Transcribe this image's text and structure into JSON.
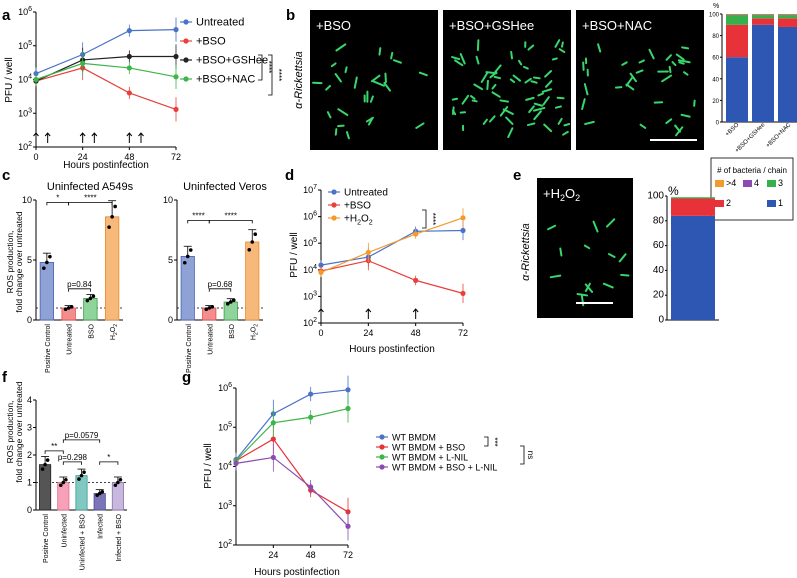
{
  "panel_labels": {
    "a": "a",
    "b": "b",
    "c": "c",
    "d": "d",
    "e": "e",
    "f": "f",
    "g": "g"
  },
  "panel_a": {
    "ylabel": "PFU / well",
    "xlabel": "Hours postinfection",
    "sig1": "****",
    "sig2": "****"
  },
  "panel_b": {
    "img_labels": [
      "+BSO",
      "+BSO+GSHee",
      "+BSO+NAC"
    ],
    "side_label": "α-Rickettsia",
    "pct_label": "%",
    "legend_title": "# of bacteria / chain",
    "legend_items": [
      ">4",
      "4",
      "3",
      "2",
      "1"
    ]
  },
  "panel_c": {
    "title_left": "Uninfected A549s",
    "title_right": "Uninfected Veros",
    "ylabel1": "ROS production,",
    "ylabel2": "fold change over untreated",
    "annot_left": [
      "*",
      "****",
      "p=0.84"
    ],
    "annot_right": [
      "****",
      "****",
      "p=0.68"
    ]
  },
  "panel_d": {
    "ylabel": "PFU / well",
    "xlabel": "Hours postinfection",
    "sig": "****"
  },
  "panel_e": {
    "img_label": "+H2O2",
    "side_label": "α-Rickettsia",
    "pct_label": "%"
  },
  "panel_f": {
    "ylabel1": "ROS production,",
    "ylabel2": "fold change over untreated",
    "annot": [
      "**",
      "p=0.298",
      "p=0.0579",
      "*"
    ]
  },
  "panel_g": {
    "ylabel": "PFU / well",
    "xlabel": "Hours postinfection",
    "sig1": "***",
    "sig2": "ns"
  },
  "chart_data": [
    {
      "id": "a",
      "type": "line",
      "xlabel": "Hours postinfection",
      "ylabel": "PFU / well",
      "yscale": "log",
      "ylim": [
        100,
        1000000
      ],
      "x_ticks": [
        0,
        24,
        48,
        72
      ],
      "y_ticks": [
        "10^2",
        "10^3",
        "10^4",
        "10^5",
        "10^6"
      ],
      "series": [
        {
          "name": "Untreated",
          "color": "#4a72c9",
          "x": [
            0,
            24,
            48,
            72
          ],
          "values": [
            15000,
            55000,
            280000,
            300000
          ]
        },
        {
          "name": "+BSO",
          "color": "#e8413c",
          "x": [
            0,
            24,
            48,
            72
          ],
          "values": [
            9000,
            22000,
            4000,
            1300
          ]
        },
        {
          "name": "+BSO+GSHee",
          "color": "#222222",
          "x": [
            0,
            24,
            48,
            72
          ],
          "values": [
            9000,
            38000,
            48000,
            48000
          ]
        },
        {
          "name": "+BSO+NAC",
          "color": "#3cb54a",
          "x": [
            0,
            24,
            48,
            72
          ],
          "values": [
            10000,
            30000,
            22000,
            12000
          ]
        }
      ],
      "arrows_at": [
        0,
        6,
        24,
        30,
        48,
        54
      ]
    },
    {
      "id": "b",
      "type": "bar",
      "stacked": true,
      "categories": [
        "+BSO",
        "+BSO+GSHee",
        "+BSO+NAC"
      ],
      "ylim": [
        0,
        100
      ],
      "y_ticks": [
        0,
        20,
        40,
        60,
        80,
        100
      ],
      "series": [
        {
          "name": "1",
          "color": "#2d57b3",
          "values": [
            60,
            90,
            88
          ]
        },
        {
          "name": "2",
          "color": "#e8323a",
          "values": [
            30,
            6,
            8
          ]
        },
        {
          "name": "3",
          "color": "#35b04a",
          "values": [
            9,
            3,
            3
          ]
        },
        {
          "name": "4",
          "color": "#8a4cb0",
          "values": [
            0.5,
            0.5,
            0.5
          ]
        },
        {
          "name": ">4",
          "color": "#f39a2d",
          "values": [
            0.5,
            0.5,
            0.5
          ]
        }
      ]
    },
    {
      "id": "c-left",
      "type": "bar",
      "title": "Uninfected A549s",
      "categories": [
        "Positive Control",
        "Untreated",
        "BSO",
        "H2O2"
      ],
      "values": [
        4.8,
        1.0,
        1.8,
        8.6
      ],
      "ylim": [
        0,
        10
      ],
      "y_ticks": [
        0,
        5,
        10
      ]
    },
    {
      "id": "c-right",
      "type": "bar",
      "title": "Uninfected Veros",
      "categories": [
        "Positive Control",
        "Untreated",
        "BSO",
        "H2O2"
      ],
      "values": [
        5.3,
        1.0,
        1.5,
        6.5
      ],
      "ylim": [
        0,
        10
      ],
      "y_ticks": [
        0,
        5,
        10
      ]
    },
    {
      "id": "d",
      "type": "line",
      "xlabel": "Hours postinfection",
      "ylabel": "PFU / well",
      "yscale": "log",
      "ylim": [
        100,
        10000000
      ],
      "x_ticks": [
        0,
        24,
        48,
        72
      ],
      "y_ticks": [
        "10^2",
        "10^3",
        "10^4",
        "10^5",
        "10^6",
        "10^7"
      ],
      "series": [
        {
          "name": "Untreated",
          "color": "#4a72c9",
          "x": [
            0,
            24,
            48,
            72
          ],
          "values": [
            15000,
            30000,
            280000,
            300000
          ]
        },
        {
          "name": "+BSO",
          "color": "#e8413c",
          "x": [
            0,
            24,
            48,
            72
          ],
          "values": [
            9000,
            22000,
            4000,
            1300
          ]
        },
        {
          "name": "+H2O2",
          "color": "#f39a2d",
          "x": [
            0,
            24,
            48,
            72
          ],
          "values": [
            8000,
            45000,
            220000,
            900000
          ]
        }
      ],
      "arrows_at": [
        0,
        24,
        48
      ]
    },
    {
      "id": "e",
      "type": "bar",
      "stacked": true,
      "categories": [
        "+H2O2"
      ],
      "ylim": [
        0,
        100
      ],
      "y_ticks": [
        0,
        20,
        40,
        60,
        80,
        100
      ],
      "series": [
        {
          "name": "1",
          "color": "#2d57b3",
          "values": [
            84
          ]
        },
        {
          "name": "2",
          "color": "#e8323a",
          "values": [
            14
          ]
        },
        {
          "name": "3",
          "color": "#35b04a",
          "values": [
            1
          ]
        }
      ]
    },
    {
      "id": "f",
      "type": "bar",
      "categories": [
        "Positive Control",
        "Uninfected",
        "Uninfected + BSO",
        "Infected",
        "Infected + BSO"
      ],
      "values": [
        1.65,
        1.0,
        1.25,
        0.6,
        1.0
      ],
      "ylim": [
        0,
        4
      ],
      "y_ticks": [
        0,
        1,
        2,
        3,
        4
      ]
    },
    {
      "id": "g",
      "type": "line",
      "xlabel": "Hours postinfection",
      "ylabel": "PFU / well",
      "yscale": "log",
      "ylim": [
        100,
        1000000
      ],
      "x_ticks": [
        24,
        48,
        72
      ],
      "y_ticks": [
        "10^2",
        "10^3",
        "10^4",
        "10^5",
        "10^6"
      ],
      "series": [
        {
          "name": "WT BMDM",
          "color": "#4a72c9",
          "x": [
            0,
            24,
            48,
            72
          ],
          "values": [
            15000,
            220000,
            700000,
            900000
          ]
        },
        {
          "name": "WT BMDM + BSO",
          "color": "#e8323a",
          "x": [
            0,
            24,
            48,
            72
          ],
          "values": [
            14000,
            50000,
            2500,
            700
          ]
        },
        {
          "name": "WT BMDM + L-NIL",
          "color": "#3cb54a",
          "x": [
            0,
            24,
            48,
            72
          ],
          "values": [
            14000,
            130000,
            180000,
            300000
          ]
        },
        {
          "name": "WT BMDM + BSO + L-NIL",
          "color": "#8a4cb0",
          "x": [
            0,
            24,
            48,
            72
          ],
          "values": [
            12000,
            17000,
            3000,
            300
          ]
        }
      ]
    }
  ]
}
